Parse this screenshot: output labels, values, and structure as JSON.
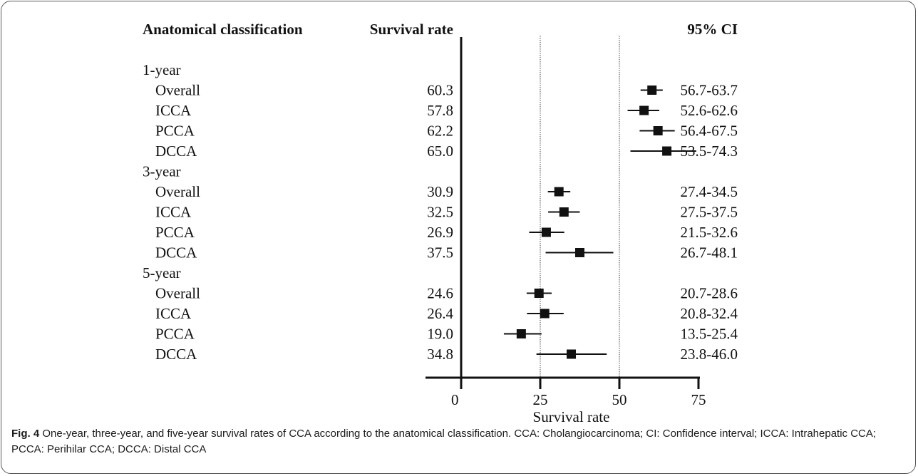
{
  "headers": {
    "classification": "Anatomical classification",
    "rate": "Survival rate",
    "ci": "95% CI"
  },
  "caption": {
    "label": "Fig. 4",
    "text": "One-year, three-year, and five-year survival rates of CCA according to the anatomical classification. CCA: Cholangiocarcinoma; CI: Confidence interval; ICCA: Intrahepatic CCA; PCCA: Perihilar CCA; DCCA: Distal CCA"
  },
  "chart_data": {
    "type": "forest",
    "xlabel": "Survival rate",
    "xlim": [
      0,
      75
    ],
    "xticks": [
      "0",
      "25",
      "50",
      "75"
    ],
    "reference_lines": [
      25,
      50
    ],
    "groups": [
      {
        "label": "1-year",
        "rows": [
          {
            "label": "Overall",
            "rate": "60.3",
            "ci": "56.7-63.7",
            "value": 60.3,
            "lo": 56.7,
            "hi": 63.7
          },
          {
            "label": "ICCA",
            "rate": "57.8",
            "ci": "52.6-62.6",
            "value": 57.8,
            "lo": 52.6,
            "hi": 62.6
          },
          {
            "label": "PCCA",
            "rate": "62.2",
            "ci": "56.4-67.5",
            "value": 62.2,
            "lo": 56.4,
            "hi": 67.5
          },
          {
            "label": "DCCA",
            "rate": "65.0",
            "ci": "53.5-74.3",
            "value": 65.0,
            "lo": 53.5,
            "hi": 74.3
          }
        ]
      },
      {
        "label": "3-year",
        "rows": [
          {
            "label": "Overall",
            "rate": "30.9",
            "ci": "27.4-34.5",
            "value": 30.9,
            "lo": 27.4,
            "hi": 34.5
          },
          {
            "label": "ICCA",
            "rate": "32.5",
            "ci": "27.5-37.5",
            "value": 32.5,
            "lo": 27.5,
            "hi": 37.5
          },
          {
            "label": "PCCA",
            "rate": "26.9",
            "ci": "21.5-32.6",
            "value": 26.9,
            "lo": 21.5,
            "hi": 32.6
          },
          {
            "label": "DCCA",
            "rate": "37.5",
            "ci": "26.7-48.1",
            "value": 37.5,
            "lo": 26.7,
            "hi": 48.1
          }
        ]
      },
      {
        "label": "5-year",
        "rows": [
          {
            "label": "Overall",
            "rate": "24.6",
            "ci": "20.7-28.6",
            "value": 24.6,
            "lo": 20.7,
            "hi": 28.6
          },
          {
            "label": "ICCA",
            "rate": "26.4",
            "ci": "20.8-32.4",
            "value": 26.4,
            "lo": 20.8,
            "hi": 32.4
          },
          {
            "label": "PCCA",
            "rate": "19.0",
            "ci": "13.5-25.4",
            "value": 19.0,
            "lo": 13.5,
            "hi": 25.4
          },
          {
            "label": "DCCA",
            "rate": "34.8",
            "ci": "23.8-46.0",
            "value": 34.8,
            "lo": 23.8,
            "hi": 46.0
          }
        ]
      }
    ]
  }
}
